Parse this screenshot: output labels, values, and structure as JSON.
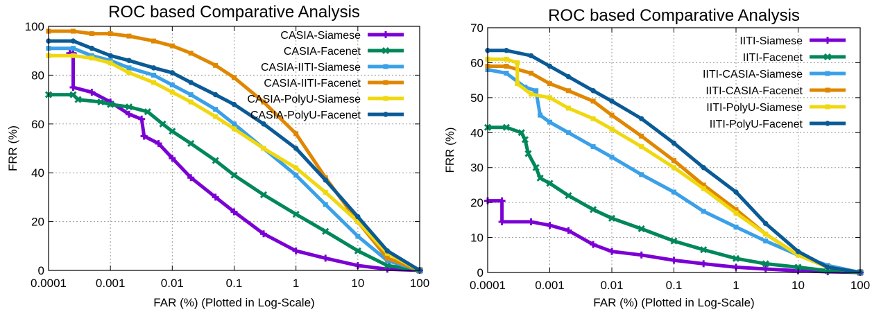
{
  "chart_data": [
    {
      "type": "line",
      "title": "ROC based Comparative Analysis",
      "xlabel": "FAR (%) (Plotted in Log-Scale)",
      "ylabel": "FRR (%)",
      "xscale": "log",
      "xlim": [
        0.0001,
        100
      ],
      "ylim": [
        0,
        100
      ],
      "xticks": [
        0.0001,
        0.001,
        0.01,
        0.1,
        1,
        10,
        100
      ],
      "xtick_labels": [
        "0.0001",
        "0.001",
        "0.01",
        "0.1",
        "1",
        "10",
        "100"
      ],
      "yticks": [
        0,
        20,
        40,
        60,
        80,
        100
      ],
      "ytick_labels": [
        "0",
        "20",
        "40",
        "60",
        "80",
        "100"
      ],
      "grid": true,
      "legend_position": "top-right",
      "series": [
        {
          "name": "CASIA-Siamese",
          "color": "#7b00d4",
          "marker": "plus",
          "x": [
            0.00022,
            0.00025,
            0.00025,
            0.0005,
            0.001,
            0.002,
            0.0032,
            0.0035,
            0.0035,
            0.006,
            0.01,
            0.02,
            0.05,
            0.1,
            0.3,
            1,
            3,
            10,
            30,
            100
          ],
          "y": [
            89,
            89,
            75,
            73,
            69,
            64,
            62,
            55,
            55,
            52,
            46,
            38,
            30,
            24,
            15,
            8,
            5,
            2,
            0.5,
            0
          ]
        },
        {
          "name": "CASIA-Facenet",
          "color": "#00875a",
          "marker": "x",
          "x": [
            0.0001,
            0.00025,
            0.0003,
            0.0007,
            0.001,
            0.002,
            0.004,
            0.007,
            0.01,
            0.02,
            0.05,
            0.1,
            0.3,
            1,
            3,
            10,
            30,
            100
          ],
          "y": [
            72,
            72,
            70,
            69,
            68,
            67,
            65,
            60,
            57,
            52,
            45,
            39,
            31,
            23,
            16,
            8,
            2,
            0
          ]
        },
        {
          "name": "CASIA-IITI-Siamese",
          "color": "#3aa0e8",
          "marker": "square",
          "x": [
            0.0001,
            0.00025,
            0.0005,
            0.001,
            0.002,
            0.005,
            0.01,
            0.02,
            0.05,
            0.1,
            0.3,
            1,
            3,
            10,
            30,
            100
          ],
          "y": [
            91,
            91,
            88,
            86,
            83,
            80,
            76,
            72,
            66,
            60,
            50,
            39,
            27,
            14,
            4,
            0
          ]
        },
        {
          "name": "CASIA-IITI-Facenet",
          "color": "#e08700",
          "marker": "square",
          "x": [
            0.0001,
            0.00025,
            0.0005,
            0.001,
            0.002,
            0.005,
            0.01,
            0.02,
            0.05,
            0.1,
            0.3,
            1,
            3,
            10,
            30,
            100
          ],
          "y": [
            98,
            98,
            97,
            97,
            96,
            94,
            92,
            89,
            84,
            79,
            69,
            56,
            38,
            20,
            5,
            0
          ]
        },
        {
          "name": "CASIA-PolyU-Siamese",
          "color": "#f0d810",
          "marker": "square",
          "x": [
            0.0001,
            0.00025,
            0.0005,
            0.001,
            0.002,
            0.005,
            0.01,
            0.02,
            0.05,
            0.1,
            0.3,
            1,
            3,
            10,
            30,
            100
          ],
          "y": [
            88,
            88,
            87,
            85,
            81,
            77,
            73,
            69,
            63,
            58,
            50,
            42,
            32,
            20,
            7,
            0
          ]
        },
        {
          "name": "CASIA-PolyU-Facenet",
          "color": "#0a5a96",
          "marker": "circle",
          "x": [
            0.0001,
            0.00025,
            0.0005,
            0.001,
            0.002,
            0.005,
            0.01,
            0.02,
            0.05,
            0.1,
            0.3,
            1,
            3,
            10,
            30,
            100
          ],
          "y": [
            94,
            94,
            91,
            88,
            86,
            83,
            81,
            77,
            72,
            68,
            60,
            50,
            37,
            22,
            8,
            0
          ]
        }
      ]
    },
    {
      "type": "line",
      "title": "ROC based Comparative Analysis",
      "xlabel": "FAR (%) (Plotted in Log-Scale)",
      "ylabel": "FRR (%)",
      "xscale": "log",
      "xlim": [
        0.0001,
        100
      ],
      "ylim": [
        0,
        70
      ],
      "xticks": [
        0.0001,
        0.001,
        0.01,
        0.1,
        1,
        10,
        100
      ],
      "xtick_labels": [
        "0.0001",
        "0.001",
        "0.01",
        "0.1",
        "1",
        "10",
        "100"
      ],
      "yticks": [
        0,
        10,
        20,
        30,
        40,
        50,
        60,
        70
      ],
      "ytick_labels": [
        "0",
        "10",
        "20",
        "30",
        "40",
        "50",
        "60",
        "70"
      ],
      "grid": true,
      "legend_position": "top-right",
      "series": [
        {
          "name": "IITI-Siamese",
          "color": "#7b00d4",
          "marker": "plus",
          "x": [
            0.0001,
            0.00017,
            0.00017,
            0.0005,
            0.001,
            0.002,
            0.005,
            0.01,
            0.03,
            0.1,
            0.3,
            1,
            3,
            10,
            30,
            100
          ],
          "y": [
            20.5,
            20.5,
            14.5,
            14.5,
            13.5,
            12,
            8,
            6,
            5,
            3.5,
            2.5,
            1.5,
            1,
            0.5,
            0.2,
            0
          ]
        },
        {
          "name": "IITI-Facenet",
          "color": "#00875a",
          "marker": "x",
          "x": [
            0.0001,
            0.0002,
            0.00035,
            0.0004,
            0.00045,
            0.0006,
            0.0007,
            0.001,
            0.002,
            0.005,
            0.01,
            0.03,
            0.1,
            0.3,
            1,
            3,
            10,
            30,
            100
          ],
          "y": [
            41.5,
            41.5,
            40,
            38,
            34,
            30,
            27,
            25.5,
            22,
            18,
            15.5,
            12.5,
            9,
            6.5,
            4,
            2.5,
            1.5,
            0.5,
            0
          ]
        },
        {
          "name": "IITI-CASIA-Siamese",
          "color": "#3aa0e8",
          "marker": "square",
          "x": [
            0.0001,
            0.0002,
            0.0004,
            0.0006,
            0.0007,
            0.001,
            0.002,
            0.005,
            0.01,
            0.03,
            0.1,
            0.3,
            1,
            3,
            10,
            30,
            100
          ],
          "y": [
            58,
            57,
            53,
            52,
            45,
            43,
            40,
            36,
            33,
            28,
            23,
            17.5,
            13,
            9,
            5,
            2,
            0
          ]
        },
        {
          "name": "IITI-CASIA-Facenet",
          "color": "#e08700",
          "marker": "square",
          "x": [
            0.0001,
            0.0002,
            0.0005,
            0.001,
            0.002,
            0.005,
            0.01,
            0.03,
            0.1,
            0.3,
            1,
            3,
            10,
            30,
            100
          ],
          "y": [
            59,
            59,
            57,
            54,
            52,
            49,
            45,
            39,
            32,
            25,
            18,
            11,
            5,
            1.5,
            0
          ]
        },
        {
          "name": "IITI-PolyU-Siamese",
          "color": "#f0d810",
          "marker": "square",
          "x": [
            0.0001,
            0.0002,
            0.0003,
            0.0003,
            0.0005,
            0.001,
            0.002,
            0.005,
            0.01,
            0.03,
            0.1,
            0.3,
            1,
            3,
            10,
            30,
            100
          ],
          "y": [
            61,
            61,
            60,
            54,
            51,
            50,
            47,
            44,
            41,
            36,
            30,
            24,
            17,
            11,
            5,
            1.5,
            0
          ]
        },
        {
          "name": "IITI-PolyU-Facenet",
          "color": "#0a5a96",
          "marker": "circle",
          "x": [
            0.0001,
            0.0002,
            0.0005,
            0.001,
            0.002,
            0.005,
            0.01,
            0.03,
            0.1,
            0.3,
            1,
            3,
            10,
            30,
            100
          ],
          "y": [
            63.5,
            63.5,
            62,
            59,
            56,
            52,
            49,
            44,
            37,
            30,
            23,
            14,
            6,
            1.5,
            0
          ]
        }
      ]
    }
  ]
}
